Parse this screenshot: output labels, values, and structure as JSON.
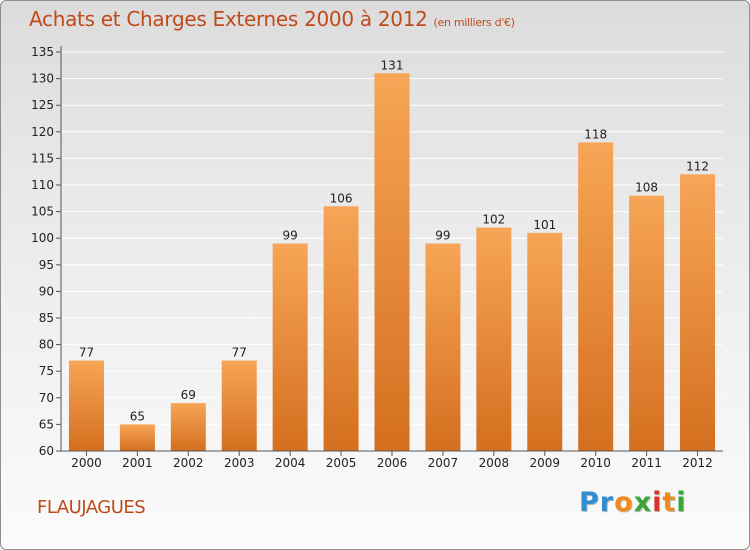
{
  "header": {
    "title": "Achats et Charges Externes 2000 à 2012",
    "subtitle": "(en milliers d'€)"
  },
  "footer": {
    "location": "FLAUJAGUES",
    "logo": "Proxiti",
    "logo_colors": [
      "#2f8fd1",
      "#2f8fd1",
      "#f08a1c",
      "#3aa63a",
      "#d8342f",
      "#f08a1c",
      "#3aa63a"
    ]
  },
  "colors": {
    "bar_light": "#f7a556",
    "bar_dark": "#d46f1f",
    "grid": "#ffffff",
    "axis": "#555555"
  },
  "chart_data": {
    "type": "bar",
    "categories": [
      "2000",
      "2001",
      "2002",
      "2003",
      "2004",
      "2005",
      "2006",
      "2007",
      "2008",
      "2009",
      "2010",
      "2011",
      "2012"
    ],
    "values": [
      77,
      65,
      69,
      77,
      99,
      106,
      131,
      99,
      102,
      101,
      118,
      108,
      112
    ],
    "ylim": [
      60,
      135
    ],
    "yticks": [
      60,
      65,
      70,
      75,
      80,
      85,
      90,
      95,
      100,
      105,
      110,
      115,
      120,
      125,
      130,
      135
    ],
    "grid": true,
    "xlabel": "",
    "ylabel": ""
  }
}
